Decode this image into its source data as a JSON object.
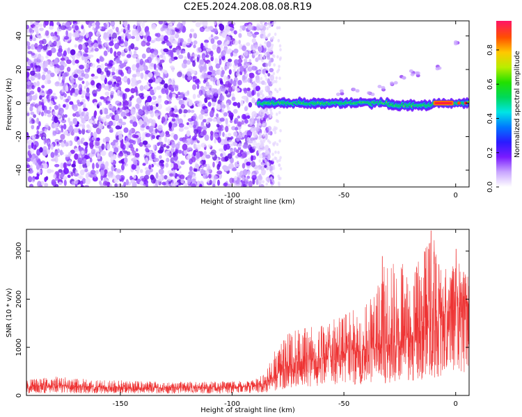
{
  "chart_data": [
    {
      "type": "heatmap",
      "title": "C2E5.2024.208.08.08.R19",
      "xlabel": "Height of straight line (km)",
      "ylabel": "Frequency (Hz)",
      "xlim": [
        -192,
        6
      ],
      "ylim": [
        -50,
        49
      ],
      "xticks": [
        -150,
        -100,
        -50,
        0
      ],
      "xtick_labels": [
        "-150",
        "-100",
        "-50",
        "0"
      ],
      "yticks": [
        40,
        20,
        0,
        -20,
        -40
      ],
      "ytick_labels": [
        "40",
        "20",
        "0",
        "-20",
        "-40"
      ],
      "colorbar": {
        "label": "Normalized spectral amplitude",
        "range": [
          0,
          0.97
        ],
        "ticks": [
          0.0,
          0.2,
          0.4,
          0.6,
          0.8
        ],
        "tick_labels": [
          "0.0",
          "0.2",
          "0.4",
          "0.6",
          "0.8"
        ]
      },
      "regions": [
        {
          "name": "broadband noise",
          "x_range": [
            -192,
            -82
          ],
          "amplitude": 0.25
        },
        {
          "name": "carrier signal",
          "x_range": [
            -88,
            6
          ],
          "frequency_hz": 0,
          "amplitude_peak": 0.95
        }
      ],
      "side_band_points": [
        [
          -52,
          6
        ],
        [
          -45,
          8
        ],
        [
          -38,
          5
        ],
        [
          -33,
          9
        ],
        [
          -28,
          12
        ],
        [
          -24,
          15
        ],
        [
          -20,
          18
        ],
        [
          -17,
          17
        ],
        [
          -8,
          21
        ],
        [
          1,
          36
        ]
      ]
    },
    {
      "type": "line",
      "xlabel": "Height of straight line (km)",
      "ylabel": "SNR (10 * v/v)",
      "xlim": [
        -192,
        6
      ],
      "ylim": [
        0,
        3450
      ],
      "xticks": [
        -150,
        -100,
        -50,
        0
      ],
      "xtick_labels": [
        "-150",
        "-100",
        "-50",
        "0"
      ],
      "yticks": [
        0,
        1000,
        2000,
        3000
      ],
      "ytick_labels": [
        "0",
        "1000",
        "2000",
        "3000"
      ],
      "line_color": "#ee3333",
      "envelope": {
        "x": [
          -192,
          -180,
          -160,
          -140,
          -120,
          -100,
          -90,
          -85,
          -80,
          -75,
          -70,
          -60,
          -50,
          -40,
          -30,
          -20,
          -10,
          -5,
          0,
          5
        ],
        "mean": [
          180,
          200,
          170,
          160,
          160,
          170,
          200,
          260,
          420,
          600,
          700,
          780,
          850,
          950,
          1050,
          1200,
          1450,
          1700,
          1800,
          1900
        ],
        "peak": [
          320,
          400,
          330,
          300,
          280,
          300,
          320,
          500,
          1050,
          1300,
          1400,
          1500,
          1700,
          1900,
          2900,
          2700,
          3400,
          2600,
          3050,
          2500
        ]
      },
      "notable_peaks": [
        [
          -32.8,
          2890
        ],
        [
          -11,
          3420
        ],
        [
          -7.5,
          2720
        ],
        [
          0.2,
          3040
        ],
        [
          3.5,
          2560
        ]
      ]
    }
  ]
}
